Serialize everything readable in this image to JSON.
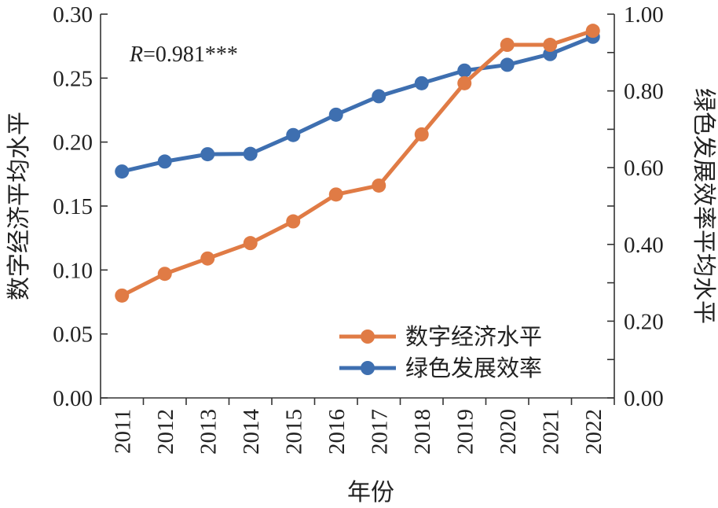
{
  "chart_data": {
    "type": "line",
    "xlabel": "年份",
    "ylabel_left": "数字经济平均水平",
    "ylabel_right": "绿色发展效率平均水平",
    "categories": [
      "2011",
      "2012",
      "2013",
      "2014",
      "2015",
      "2016",
      "2017",
      "2018",
      "2019",
      "2020",
      "2021",
      "2022"
    ],
    "ylim_left": [
      0,
      0.3
    ],
    "ylim_right": [
      0,
      1.0
    ],
    "yticks_left": [
      "0.00",
      "0.05",
      "0.10",
      "0.15",
      "0.20",
      "0.25",
      "0.30"
    ],
    "yticks_right": [
      "0.00",
      "0.20",
      "0.40",
      "0.60",
      "0.80",
      "1.00"
    ],
    "series": [
      {
        "name": "数字经济水平",
        "axis": "left",
        "color": "#E07B45",
        "values": [
          0.08,
          0.097,
          0.109,
          0.121,
          0.138,
          0.159,
          0.166,
          0.206,
          0.246,
          0.276,
          0.276,
          0.287
        ]
      },
      {
        "name": "绿色发展效率",
        "axis": "right",
        "color": "#3E6FB0",
        "values": [
          0.59,
          0.616,
          0.635,
          0.636,
          0.685,
          0.738,
          0.786,
          0.82,
          0.853,
          0.868,
          0.896,
          0.941
        ]
      }
    ],
    "annotation": {
      "italic": "R",
      "rest": "=0.981***"
    },
    "legend_position": "bottom-right",
    "grid": false
  }
}
